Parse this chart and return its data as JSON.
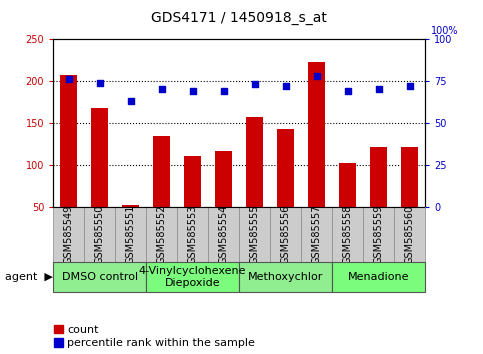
{
  "title": "GDS4171 / 1450918_s_at",
  "samples": [
    "GSM585549",
    "GSM585550",
    "GSM585551",
    "GSM585552",
    "GSM585553",
    "GSM585554",
    "GSM585555",
    "GSM585556",
    "GSM585557",
    "GSM585558",
    "GSM585559",
    "GSM585560"
  ],
  "counts": [
    207,
    168,
    52,
    134,
    111,
    117,
    157,
    143,
    222,
    102,
    121,
    122
  ],
  "percentiles": [
    76,
    74,
    63,
    70,
    69,
    69,
    73,
    72,
    78,
    69,
    70,
    72
  ],
  "agents": [
    {
      "label": "DMSO control",
      "start": 0,
      "end": 3,
      "color": "#90EE90"
    },
    {
      "label": "4-Vinylcyclohexene\nDiepoxide",
      "start": 3,
      "end": 6,
      "color": "#7CFC7C"
    },
    {
      "label": "Methoxychlor",
      "start": 6,
      "end": 9,
      "color": "#90EE90"
    },
    {
      "label": "Menadione",
      "start": 9,
      "end": 12,
      "color": "#7CFC7C"
    }
  ],
  "ylim_left": [
    50,
    250
  ],
  "ylim_right": [
    0,
    100
  ],
  "yticks_left": [
    50,
    100,
    150,
    200,
    250
  ],
  "yticks_right": [
    0,
    25,
    50,
    75,
    100
  ],
  "bar_color": "#CC0000",
  "dot_color": "#0000CC",
  "title_fontsize": 10,
  "tick_fontsize": 7,
  "label_fontsize": 7,
  "agent_fontsize": 8,
  "legend_fontsize": 8
}
